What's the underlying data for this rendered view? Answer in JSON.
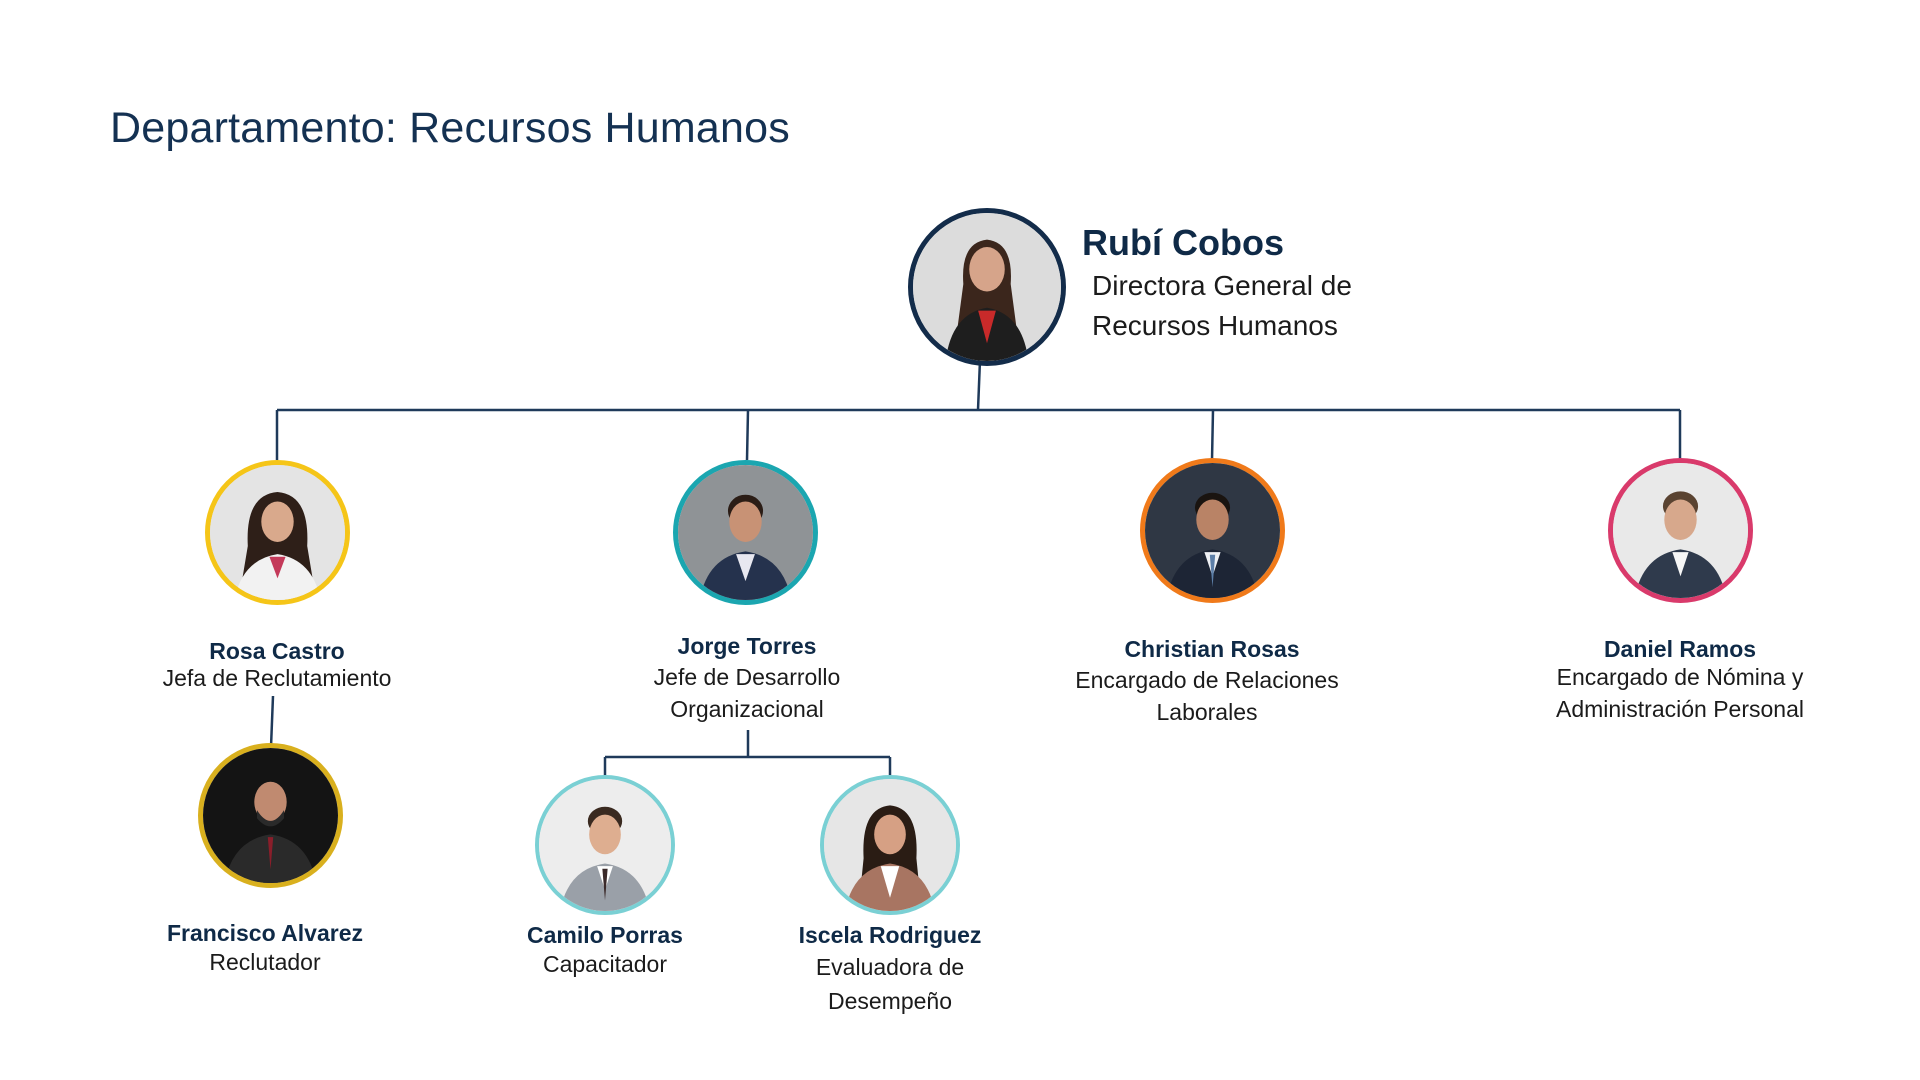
{
  "page": {
    "title": "Departamento: Recursos Humanos"
  },
  "colors": {
    "line": "#1f3a5a",
    "navy": "#132c4a",
    "yellow": "#f5c518",
    "teal": "#1ba6b0",
    "orange": "#f07a1a",
    "pink": "#d93a6b",
    "gold": "#d9b01e",
    "light_teal": "#7ad0d4"
  },
  "director": {
    "name": "Rubí Cobos",
    "role": "Directora General de Recursos Humanos"
  },
  "managers": [
    {
      "name": "Rosa Castro",
      "role": "Jefa de Reclutamiento"
    },
    {
      "name": "Jorge Torres",
      "role": "Jefe de Desarrollo Organizacional"
    },
    {
      "name": "Christian Rosas",
      "role": "Encargado de Relaciones Laborales"
    },
    {
      "name": "Daniel Ramos",
      "role": "Encargado de Nómina y Administración Personal"
    }
  ],
  "staff": [
    {
      "name": "Francisco Alvarez",
      "role": "Reclutador"
    },
    {
      "name": "Camilo Porras",
      "role": "Capacitador"
    },
    {
      "name": "Iscela Rodriguez",
      "role": "Evaluadora de Desempeño"
    }
  ]
}
